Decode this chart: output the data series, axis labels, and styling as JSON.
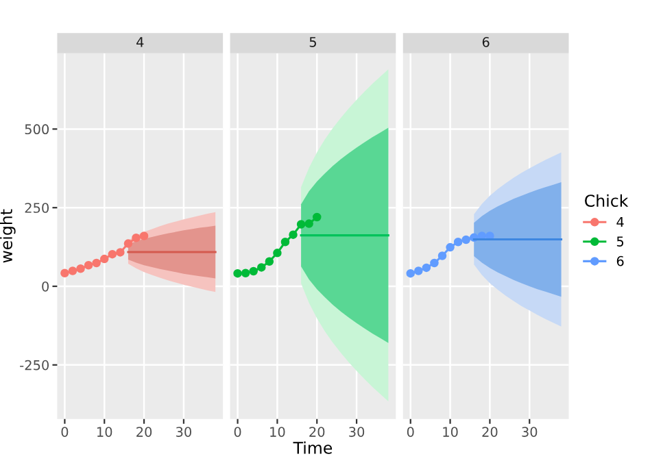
{
  "chart_data": [
    {
      "type": "line",
      "title": "4",
      "ylabel": "weight",
      "xlim": [
        -1.9,
        39.9
      ],
      "xticks": [
        0,
        10,
        20,
        30
      ],
      "ylim": [
        -422,
        741
      ],
      "yticks": [
        -250,
        0,
        250,
        500
      ],
      "grid": true,
      "marker": "circle",
      "series": [
        {
          "name": "4",
          "color": "#f8766d",
          "x": [
            0,
            2,
            4,
            6,
            8,
            10,
            12,
            14,
            16,
            18,
            20
          ],
          "values": [
            42,
            49,
            56,
            67,
            74,
            87,
            102,
            108,
            136,
            154,
            160
          ]
        },
        {
          "color": "#f6c3bf",
          "x": [
            16,
            18,
            20,
            22,
            24,
            26,
            28,
            30,
            32,
            34,
            36,
            38
          ],
          "values": [
            null,
            null,
            null,
            null,
            null,
            null,
            null,
            null,
            null,
            null,
            null,
            null
          ],
          "upper": [
            146,
            161,
            173,
            182,
            191,
            199,
            206,
            213,
            219,
            225,
            231,
            236
          ],
          "lower": [
            72,
            57,
            45,
            36,
            27,
            19,
            12,
            5,
            -1,
            -7,
            -13,
            -18
          ]
        },
        {
          "marker": "none",
          "color": "#d45a4f",
          "x": [
            16,
            18,
            20,
            22,
            24,
            26,
            28,
            30,
            32,
            34,
            36,
            38
          ],
          "values": [
            109,
            109,
            109,
            109,
            109,
            109,
            109,
            109,
            109,
            109,
            109,
            109
          ],
          "upper": [
            133,
            143,
            151,
            157,
            163,
            168,
            173,
            178,
            182,
            186,
            189,
            193
          ],
          "lower": [
            85,
            75,
            67,
            61,
            55,
            50,
            45,
            40,
            36,
            32,
            29,
            25
          ]
        }
      ]
    },
    {
      "type": "line",
      "title": "5",
      "xlabel": "Time",
      "xlim": [
        -1.9,
        39.9
      ],
      "xticks": [
        0,
        10,
        20,
        30
      ],
      "ylim": [
        -422,
        741
      ],
      "yticks": [
        -250,
        0,
        250,
        500
      ],
      "tick_labels": "x",
      "grid": true,
      "marker": "circle",
      "series": [
        {
          "name": "5",
          "color": "#00ba38",
          "x": [
            0,
            2,
            4,
            6,
            8,
            10,
            12,
            14,
            16,
            18,
            20
          ],
          "values": [
            41,
            42,
            48,
            60,
            79,
            106,
            141,
            164,
            197,
            199,
            220
          ]
        },
        {
          "color": "#c8f5d6",
          "x": [
            16,
            18,
            20,
            22,
            24,
            26,
            28,
            30,
            32,
            34,
            36,
            38
          ],
          "values": [
            null,
            null,
            null,
            null,
            null,
            null,
            null,
            null,
            null,
            null,
            null,
            null
          ],
          "upper": [
            315,
            377,
            426,
            467,
            503,
            535,
            565,
            593,
            619,
            644,
            667,
            690
          ],
          "lower": [
            9,
            -53,
            -102,
            -143,
            -179,
            -211,
            -241,
            -269,
            -295,
            -320,
            -343,
            -366
          ]
        },
        {
          "marker": "none",
          "color": "#00c25a",
          "x": [
            16,
            18,
            20,
            22,
            24,
            26,
            28,
            30,
            32,
            34,
            36,
            38
          ],
          "values": [
            162,
            162,
            162,
            162,
            162,
            162,
            162,
            162,
            162,
            162,
            162,
            162
          ],
          "upper": [
            261,
            302,
            333,
            359,
            383,
            404,
            423,
            441,
            458,
            474,
            489,
            504
          ],
          "lower": [
            63,
            22,
            -9,
            -35,
            -59,
            -80,
            -99,
            -117,
            -134,
            -150,
            -165,
            -180
          ]
        }
      ]
    },
    {
      "type": "line",
      "title": "6",
      "legend_title": "Chick",
      "legend": "right",
      "xlim": [
        -1.9,
        39.9
      ],
      "xticks": [
        0,
        10,
        20,
        30
      ],
      "ylim": [
        -422,
        741
      ],
      "yticks": [
        -250,
        0,
        250,
        500
      ],
      "tick_labels": "x",
      "grid": true,
      "marker": "circle",
      "series": [
        {
          "name": "6",
          "color": "#619cff",
          "x": [
            0,
            2,
            4,
            6,
            8,
            10,
            12,
            14,
            16,
            18,
            20
          ],
          "values": [
            41,
            49,
            59,
            74,
            97,
            124,
            141,
            148,
            155,
            160,
            160
          ]
        },
        {
          "color": "#c6d9f6",
          "x": [
            16,
            18,
            20,
            22,
            24,
            26,
            28,
            30,
            32,
            34,
            36,
            38
          ],
          "values": [
            null,
            null,
            null,
            null,
            null,
            null,
            null,
            null,
            null,
            null,
            null,
            null
          ],
          "upper": [
            229,
            262,
            288,
            309,
            328,
            345,
            361,
            375,
            389,
            402,
            414,
            426
          ],
          "lower": [
            69,
            36,
            10,
            -11,
            -30,
            -47,
            -63,
            -77,
            -91,
            -104,
            -116,
            -128
          ]
        },
        {
          "marker": "none",
          "color": "#3d86e0",
          "x": [
            16,
            18,
            20,
            22,
            24,
            26,
            28,
            30,
            32,
            34,
            36,
            38
          ],
          "values": [
            149,
            149,
            149,
            149,
            149,
            149,
            149,
            149,
            149,
            149,
            149,
            149
          ],
          "upper": [
            202,
            223,
            240,
            254,
            266,
            278,
            288,
            298,
            307,
            315,
            323,
            331
          ],
          "lower": [
            96,
            75,
            58,
            44,
            32,
            20,
            10,
            0,
            -9,
            -17,
            -25,
            -33
          ]
        }
      ]
    }
  ]
}
